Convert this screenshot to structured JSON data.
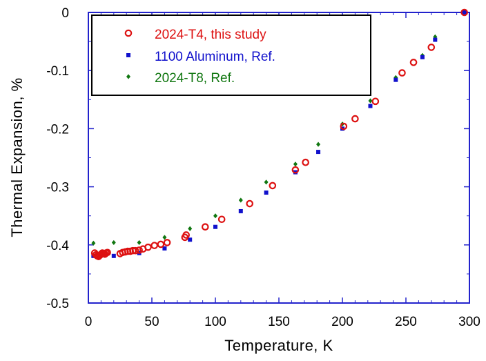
{
  "chart_data": {
    "type": "scatter",
    "title": "",
    "xlabel": "Temperature, K",
    "ylabel": "Thermal Expansion, %",
    "xlim": [
      0,
      300
    ],
    "ylim": [
      -0.5,
      0
    ],
    "x_ticks": [
      "0",
      "50",
      "100",
      "150",
      "200",
      "250",
      "300"
    ],
    "y_ticks": [
      "0",
      "-0.1",
      "-0.2",
      "-0.3",
      "-0.4",
      "-0.5"
    ],
    "grid": false,
    "legend_position": "top-left",
    "series": [
      {
        "name": "2024-T4, this study",
        "color": "#dd1111",
        "marker": "open-circle",
        "points": [
          [
            5,
            -0.414
          ],
          [
            6,
            -0.417
          ],
          [
            7,
            -0.419
          ],
          [
            8,
            -0.42
          ],
          [
            9,
            -0.418
          ],
          [
            10,
            -0.416
          ],
          [
            11,
            -0.414
          ],
          [
            12,
            -0.415
          ],
          [
            13,
            -0.416
          ],
          [
            14,
            -0.414
          ],
          [
            15,
            -0.413
          ],
          [
            25,
            -0.415
          ],
          [
            27,
            -0.413
          ],
          [
            29,
            -0.412
          ],
          [
            31,
            -0.411
          ],
          [
            33,
            -0.411
          ],
          [
            35,
            -0.41
          ],
          [
            37,
            -0.41
          ],
          [
            40,
            -0.409
          ],
          [
            43,
            -0.407
          ],
          [
            47,
            -0.404
          ],
          [
            52,
            -0.401
          ],
          [
            57,
            -0.399
          ],
          [
            62,
            -0.396
          ],
          [
            76,
            -0.387
          ],
          [
            77,
            -0.383
          ],
          [
            92,
            -0.369
          ],
          [
            105,
            -0.356
          ],
          [
            127,
            -0.329
          ],
          [
            145,
            -0.298
          ],
          [
            163,
            -0.271
          ],
          [
            171,
            -0.258
          ],
          [
            201,
            -0.196
          ],
          [
            210,
            -0.183
          ],
          [
            226,
            -0.153
          ],
          [
            247,
            -0.104
          ],
          [
            256,
            -0.086
          ],
          [
            270,
            -0.06
          ],
          [
            296,
            0.0
          ]
        ]
      },
      {
        "name": "1100 Aluminum, Ref.",
        "color": "#1111cc",
        "marker": "filled-square",
        "points": [
          [
            4,
            -0.419
          ],
          [
            20,
            -0.419
          ],
          [
            40,
            -0.414
          ],
          [
            60,
            -0.406
          ],
          [
            80,
            -0.391
          ],
          [
            100,
            -0.369
          ],
          [
            120,
            -0.342
          ],
          [
            140,
            -0.31
          ],
          [
            163,
            -0.275
          ],
          [
            181,
            -0.24
          ],
          [
            200,
            -0.2
          ],
          [
            222,
            -0.161
          ],
          [
            242,
            -0.116
          ],
          [
            263,
            -0.077
          ],
          [
            273,
            -0.047
          ],
          [
            296,
            0.0
          ]
        ]
      },
      {
        "name": "2024-T8, Ref.",
        "color": "#117711",
        "marker": "filled-diamond",
        "points": [
          [
            4,
            -0.397
          ],
          [
            20,
            -0.396
          ],
          [
            40,
            -0.396
          ],
          [
            60,
            -0.387
          ],
          [
            80,
            -0.372
          ],
          [
            100,
            -0.35
          ],
          [
            120,
            -0.323
          ],
          [
            140,
            -0.292
          ],
          [
            163,
            -0.261
          ],
          [
            181,
            -0.227
          ],
          [
            200,
            -0.192
          ],
          [
            222,
            -0.152
          ],
          [
            242,
            -0.112
          ],
          [
            263,
            -0.074
          ],
          [
            273,
            -0.042
          ]
        ]
      }
    ]
  }
}
